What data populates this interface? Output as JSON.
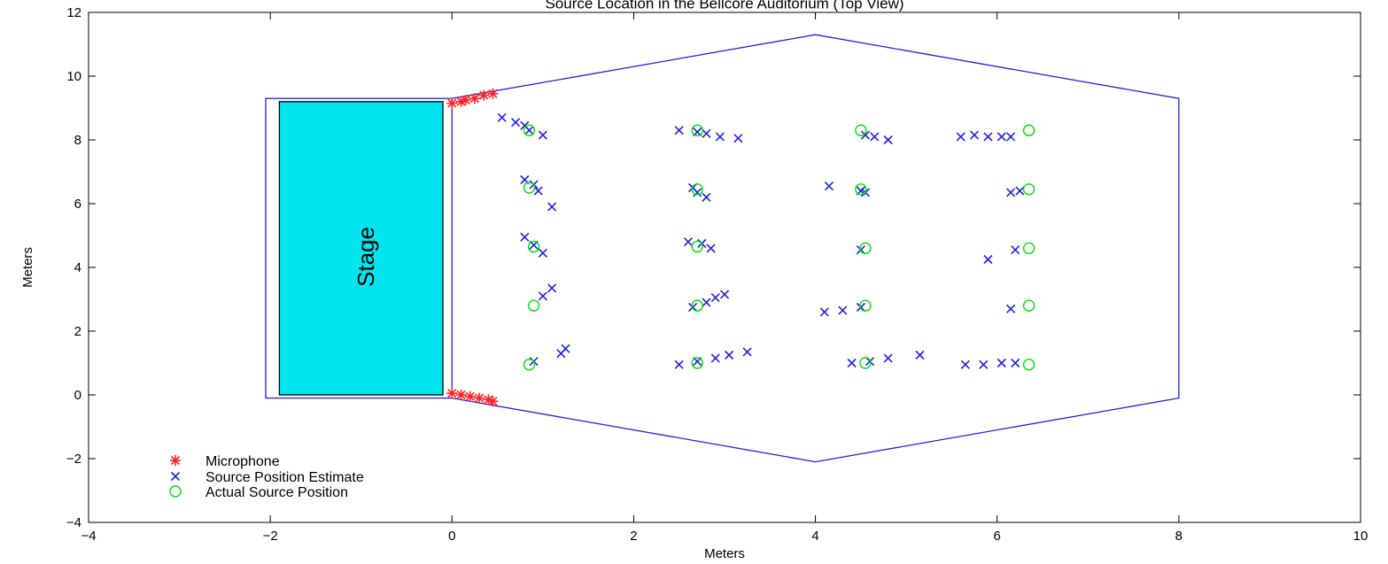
{
  "chart_data": {
    "type": "scatter",
    "title": "Source Location in the Bellcore Auditorium (Top View)",
    "xlabel": "Meters",
    "ylabel": "Meters",
    "xlim": [
      -4,
      10
    ],
    "ylim": [
      -4,
      12
    ],
    "xticks": [
      "−4",
      "−2",
      "0",
      "2",
      "4",
      "6",
      "8",
      "10"
    ],
    "yticks": [
      "−4",
      "−2",
      "0",
      "2",
      "4",
      "6",
      "8",
      "10",
      "12"
    ],
    "grid": false,
    "legend_position": "bottom-left",
    "stage_label": "Stage",
    "colors": {
      "outline": "#2020e0",
      "stage_fill": "#00e5ee",
      "microphone": "#ff2020",
      "estimate": "#2020e0",
      "actual": "#00e000"
    },
    "stage": {
      "x": [
        -1.9,
        -0.1
      ],
      "y": [
        0,
        9.2
      ]
    },
    "stage_border": {
      "x": [
        -2.05,
        0.0
      ],
      "y": [
        -0.1,
        9.3
      ]
    },
    "auditorium_outline": {
      "x": [
        0,
        4,
        8,
        8,
        4,
        0
      ],
      "y": [
        9.3,
        11.3,
        9.3,
        -0.1,
        -2.1,
        -0.1
      ]
    },
    "series": [
      {
        "name": "Microphone",
        "marker": "star",
        "x": [
          0.0,
          0.1,
          0.15,
          0.25,
          0.35,
          0.45,
          0.0,
          0.1,
          0.2,
          0.3,
          0.4,
          0.45
        ],
        "y": [
          9.15,
          9.2,
          9.25,
          9.3,
          9.4,
          9.45,
          0.05,
          0.0,
          -0.05,
          -0.1,
          -0.15,
          -0.2
        ]
      },
      {
        "name": "Source Position Estimate",
        "marker": "x",
        "x": [
          0.55,
          0.7,
          0.8,
          0.85,
          1.0,
          0.8,
          0.9,
          0.95,
          1.1,
          0.8,
          0.9,
          1.0,
          1.1,
          1.0,
          1.2,
          1.25,
          0.9,
          2.5,
          2.7,
          2.8,
          2.95,
          3.15,
          2.65,
          2.7,
          2.8,
          2.6,
          2.75,
          2.85,
          2.65,
          2.8,
          2.9,
          3.0,
          2.5,
          2.7,
          2.9,
          3.05,
          3.25,
          4.55,
          4.65,
          4.8,
          4.15,
          4.5,
          4.55,
          4.5,
          4.1,
          4.3,
          4.5,
          4.4,
          4.6,
          4.8,
          5.15,
          5.6,
          5.75,
          5.9,
          6.05,
          6.15,
          6.15,
          6.25,
          5.9,
          6.2,
          6.15,
          5.65,
          5.85,
          6.05,
          6.2
        ],
        "y": [
          8.7,
          8.55,
          8.45,
          8.3,
          8.15,
          6.75,
          6.6,
          6.4,
          5.9,
          4.95,
          4.7,
          4.45,
          3.35,
          3.1,
          1.3,
          1.45,
          1.05,
          8.3,
          8.25,
          8.2,
          8.1,
          8.05,
          6.5,
          6.35,
          6.2,
          4.8,
          4.75,
          4.6,
          2.75,
          2.9,
          3.05,
          3.15,
          0.95,
          1.05,
          1.15,
          1.25,
          1.35,
          8.15,
          8.1,
          8.0,
          6.55,
          6.4,
          6.35,
          4.55,
          2.6,
          2.65,
          2.75,
          1.0,
          1.05,
          1.15,
          1.25,
          8.1,
          8.15,
          8.1,
          8.1,
          8.1,
          6.35,
          6.4,
          4.25,
          4.55,
          2.7,
          0.95,
          0.95,
          1.0,
          1.0
        ]
      },
      {
        "name": "Actual Source Position",
        "marker": "circle",
        "x": [
          0.85,
          0.85,
          0.9,
          0.9,
          0.85,
          2.7,
          2.7,
          2.7,
          2.7,
          2.7,
          4.5,
          4.5,
          4.55,
          4.55,
          4.55,
          6.35,
          6.35,
          6.35,
          6.35,
          6.35
        ],
        "y": [
          8.3,
          6.5,
          4.65,
          2.8,
          0.95,
          8.3,
          6.45,
          4.65,
          2.8,
          1.0,
          8.3,
          6.45,
          4.6,
          2.8,
          1.0,
          8.3,
          6.45,
          4.6,
          2.8,
          0.95
        ]
      }
    ]
  }
}
